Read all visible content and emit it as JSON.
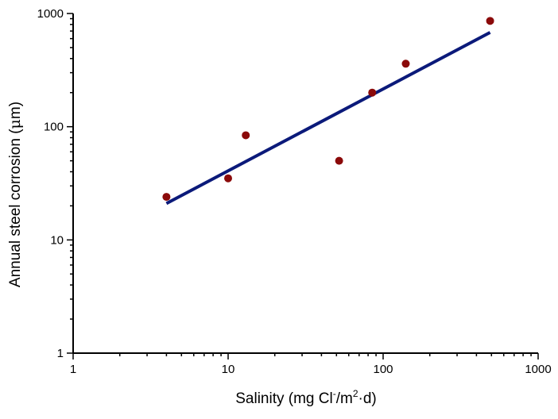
{
  "chart_data": {
    "type": "scatter",
    "title": "",
    "xlabel": {
      "prefix": "Salinity (mg Cl",
      "sup1": "-",
      "mid": "/m",
      "sup2": "2",
      "suffix": "·d)"
    },
    "ylabel": {
      "prefix": "Annual steel corrosion (",
      "mu": "μ",
      "suffix": "m)"
    },
    "x_scale": "log",
    "y_scale": "log",
    "xlim": [
      1,
      1000
    ],
    "ylim": [
      1,
      1000
    ],
    "x_ticks": [
      1,
      10,
      100,
      1000
    ],
    "x_tick_labels": [
      "1",
      "10",
      "100",
      "1000"
    ],
    "y_ticks": [
      1,
      10,
      100,
      1000
    ],
    "y_tick_labels": [
      "1",
      "10",
      "100",
      "1000"
    ],
    "grid": false,
    "series": [
      {
        "kind": "points",
        "color": "#8b0a0a",
        "x": [
          4,
          10,
          13,
          52,
          85,
          140,
          490
        ],
        "y": [
          24,
          35,
          84,
          50,
          200,
          360,
          860
        ]
      },
      {
        "kind": "fit-line",
        "color": "#0b1a7a",
        "x": [
          4,
          490
        ],
        "y": [
          21,
          680
        ]
      }
    ]
  }
}
